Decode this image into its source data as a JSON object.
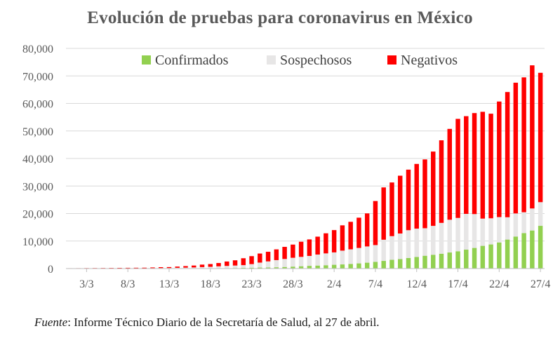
{
  "chart_data": {
    "type": "bar",
    "stacked": true,
    "title": "Evolución de pruebas para coronavirus en México",
    "xlabel": "",
    "ylabel": "",
    "ylim": [
      0,
      80000
    ],
    "y_ticks": [
      "0",
      "10,000",
      "20,000",
      "30,000",
      "40,000",
      "50,000",
      "60,000",
      "70,000",
      "80,000"
    ],
    "y_tick_values": [
      0,
      10000,
      20000,
      30000,
      40000,
      50000,
      60000,
      70000,
      80000
    ],
    "x_tick_labels": [
      "3/3",
      "8/3",
      "13/3",
      "18/3",
      "23/3",
      "28/3",
      "2/4",
      "7/4",
      "12/4",
      "17/4",
      "22/4",
      "27/4"
    ],
    "grid": "horizontal",
    "legend_position": "top",
    "categories": [
      "1/3",
      "2/3",
      "3/3",
      "4/3",
      "5/3",
      "6/3",
      "7/3",
      "8/3",
      "9/3",
      "10/3",
      "11/3",
      "12/3",
      "13/3",
      "14/3",
      "15/3",
      "16/3",
      "17/3",
      "18/3",
      "19/3",
      "20/3",
      "21/3",
      "22/3",
      "23/3",
      "24/3",
      "25/3",
      "26/3",
      "27/3",
      "28/3",
      "29/3",
      "30/3",
      "31/3",
      "1/4",
      "2/4",
      "3/4",
      "4/4",
      "5/4",
      "6/4",
      "7/4",
      "8/4",
      "9/4",
      "10/4",
      "11/4",
      "12/4",
      "13/4",
      "14/4",
      "15/4",
      "16/4",
      "17/4",
      "18/4",
      "19/4",
      "20/4",
      "21/4",
      "22/4",
      "23/4",
      "24/4",
      "25/4",
      "26/4",
      "27/4"
    ],
    "series": [
      {
        "name": "Confirmados",
        "color": "#92d050",
        "values": [
          5,
          5,
          5,
          5,
          5,
          5,
          7,
          7,
          7,
          8,
          12,
          12,
          16,
          26,
          41,
          53,
          82,
          93,
          118,
          164,
          203,
          251,
          316,
          367,
          405,
          475,
          585,
          717,
          848,
          993,
          1094,
          1215,
          1378,
          1510,
          1688,
          1890,
          2143,
          2439,
          2785,
          3181,
          3441,
          3844,
          4219,
          4661,
          5014,
          5399,
          5847,
          6297,
          6875,
          7497,
          8261,
          8772,
          9501,
          10544,
          11633,
          12872,
          13842,
          15529
        ]
      },
      {
        "name": "Sospechosos",
        "color": "#e7e6e6",
        "values": [
          30,
          30,
          40,
          45,
          50,
          60,
          70,
          80,
          90,
          100,
          150,
          170,
          180,
          250,
          290,
          350,
          450,
          550,
          700,
          800,
          900,
          1000,
          1300,
          1800,
          2200,
          2600,
          2900,
          3200,
          3400,
          3600,
          4000,
          4300,
          4500,
          5000,
          5300,
          5600,
          5900,
          6100,
          7700,
          8600,
          9300,
          10100,
          10300,
          10000,
          10500,
          11200,
          11900,
          12100,
          13000,
          12300,
          9900,
          9500,
          9200,
          8100,
          8400,
          7600,
          8000,
          8600
        ]
      },
      {
        "name": "Negativos",
        "color": "#ff0000",
        "values": [
          100,
          110,
          130,
          140,
          150,
          160,
          180,
          190,
          200,
          210,
          250,
          330,
          350,
          450,
          570,
          700,
          900,
          1000,
          1200,
          1600,
          1900,
          2500,
          2900,
          3300,
          3500,
          3900,
          4400,
          4800,
          5500,
          6000,
          6500,
          7300,
          8100,
          9200,
          10000,
          11000,
          12000,
          16000,
          19000,
          19500,
          21000,
          22000,
          23500,
          25000,
          27000,
          30000,
          33000,
          36000,
          35500,
          36700,
          38800,
          38000,
          42000,
          45500,
          47500,
          49000,
          52000,
          47000
        ]
      }
    ]
  },
  "source_note": {
    "label": "Fuente",
    "text": ": Informe Técnico Diario de la Secretaría de Salud, al 27 de abril."
  }
}
